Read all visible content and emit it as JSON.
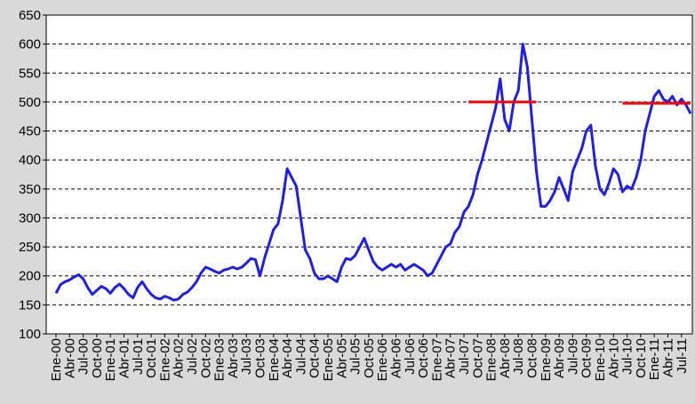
{
  "chart_data": {
    "type": "line",
    "categories": [
      "Ene-00",
      null,
      null,
      "Abr-00",
      null,
      null,
      "Jul-00",
      null,
      null,
      "Oct-00",
      null,
      null,
      "Ene-01",
      null,
      null,
      "Abr-01",
      null,
      null,
      "Jul-01",
      null,
      null,
      "Oct-01",
      null,
      null,
      "Ene-02",
      null,
      null,
      "Abr-02",
      null,
      null,
      "Jul-02",
      null,
      null,
      "Oct-02",
      null,
      null,
      "Ene-03",
      null,
      null,
      "Abr-03",
      null,
      null,
      "Jul-03",
      null,
      null,
      "Oct-03",
      null,
      null,
      "Ene-04",
      null,
      null,
      "Abr-04",
      null,
      null,
      "Jul-04",
      null,
      null,
      "Oct-04",
      null,
      null,
      "Ene-05",
      null,
      null,
      "Abr-05",
      null,
      null,
      "Jul-05",
      null,
      null,
      "Oct-05",
      null,
      null,
      "Ene-06",
      null,
      null,
      "Abr-06",
      null,
      null,
      "Jul-06",
      null,
      null,
      "Oct-06",
      null,
      null,
      "Ene-07",
      null,
      null,
      "Abr-07",
      null,
      null,
      "Jul-07",
      null,
      null,
      "Oct-07",
      null,
      null,
      "Ene-08",
      null,
      null,
      "Abr-08",
      null,
      null,
      "Jul-08",
      null,
      null,
      "Oct-08",
      null,
      null,
      "Ene-09",
      null,
      null,
      "Abr-09",
      null,
      null,
      "Jul-09",
      null,
      null,
      "Oct-09",
      null,
      null,
      "Ene-10",
      null,
      null,
      "Abr-10",
      null,
      null,
      "Jul-10",
      null,
      null,
      "Oct-10",
      null,
      null,
      "Ene-11",
      null,
      null,
      "Abr-11",
      null,
      null,
      "Jul-11",
      null,
      null
    ],
    "series": [
      {
        "color": "#1f1fe6",
        "values": [
          170,
          185,
          190,
          193,
          198,
          202,
          195,
          180,
          168,
          175,
          182,
          178,
          170,
          180,
          186,
          178,
          168,
          162,
          180,
          190,
          178,
          168,
          162,
          160,
          165,
          162,
          158,
          160,
          168,
          172,
          180,
          190,
          205,
          215,
          212,
          208,
          205,
          210,
          212,
          215,
          212,
          215,
          222,
          230,
          228,
          200,
          230,
          255,
          280,
          290,
          330,
          385,
          370,
          355,
          300,
          245,
          230,
          205,
          195,
          195,
          200,
          195,
          190,
          215,
          230,
          228,
          235,
          250,
          265,
          245,
          225,
          215,
          210,
          215,
          220,
          215,
          220,
          210,
          215,
          220,
          215,
          210,
          200,
          205,
          220,
          235,
          250,
          255,
          275,
          285,
          310,
          320,
          340,
          375,
          400,
          430,
          460,
          490,
          540,
          470,
          450,
          500,
          520,
          600,
          560,
          470,
          380,
          320,
          320,
          330,
          345,
          370,
          350,
          330,
          380,
          400,
          420,
          450,
          460,
          390,
          350,
          340,
          360,
          385,
          375,
          345,
          355,
          350,
          370,
          400,
          450,
          480,
          510,
          520,
          505,
          500,
          510,
          495,
          505,
          495,
          480
        ]
      },
      {
        "color": "#ff0000",
        "values": [
          null,
          null,
          null,
          null,
          null,
          null,
          null,
          null,
          null,
          null,
          null,
          null,
          null,
          null,
          null,
          null,
          null,
          null,
          null,
          null,
          null,
          null,
          null,
          null,
          null,
          null,
          null,
          null,
          null,
          null,
          null,
          null,
          null,
          null,
          null,
          null,
          null,
          null,
          null,
          null,
          null,
          null,
          null,
          null,
          null,
          null,
          null,
          null,
          null,
          null,
          null,
          null,
          null,
          null,
          null,
          null,
          null,
          null,
          null,
          null,
          null,
          null,
          null,
          null,
          null,
          null,
          null,
          null,
          null,
          null,
          null,
          null,
          null,
          null,
          null,
          null,
          null,
          null,
          null,
          null,
          null,
          null,
          null,
          null,
          null,
          null,
          null,
          null,
          null,
          null,
          null,
          500,
          500,
          500,
          500,
          500,
          500,
          500,
          500,
          500,
          500,
          500,
          500,
          500,
          500,
          500,
          500,
          null,
          null,
          null,
          null,
          null,
          null,
          null,
          null,
          null,
          null,
          null,
          null,
          null,
          null,
          null,
          null,
          null,
          null,
          498,
          498,
          498,
          498,
          498,
          498,
          498,
          498,
          498,
          498,
          498,
          498,
          498,
          498,
          498,
          498
        ]
      }
    ],
    "ylim": [
      100,
      650
    ],
    "yticks": [
      100,
      150,
      200,
      250,
      300,
      350,
      400,
      450,
      500,
      550,
      600,
      650
    ],
    "grid": true
  }
}
